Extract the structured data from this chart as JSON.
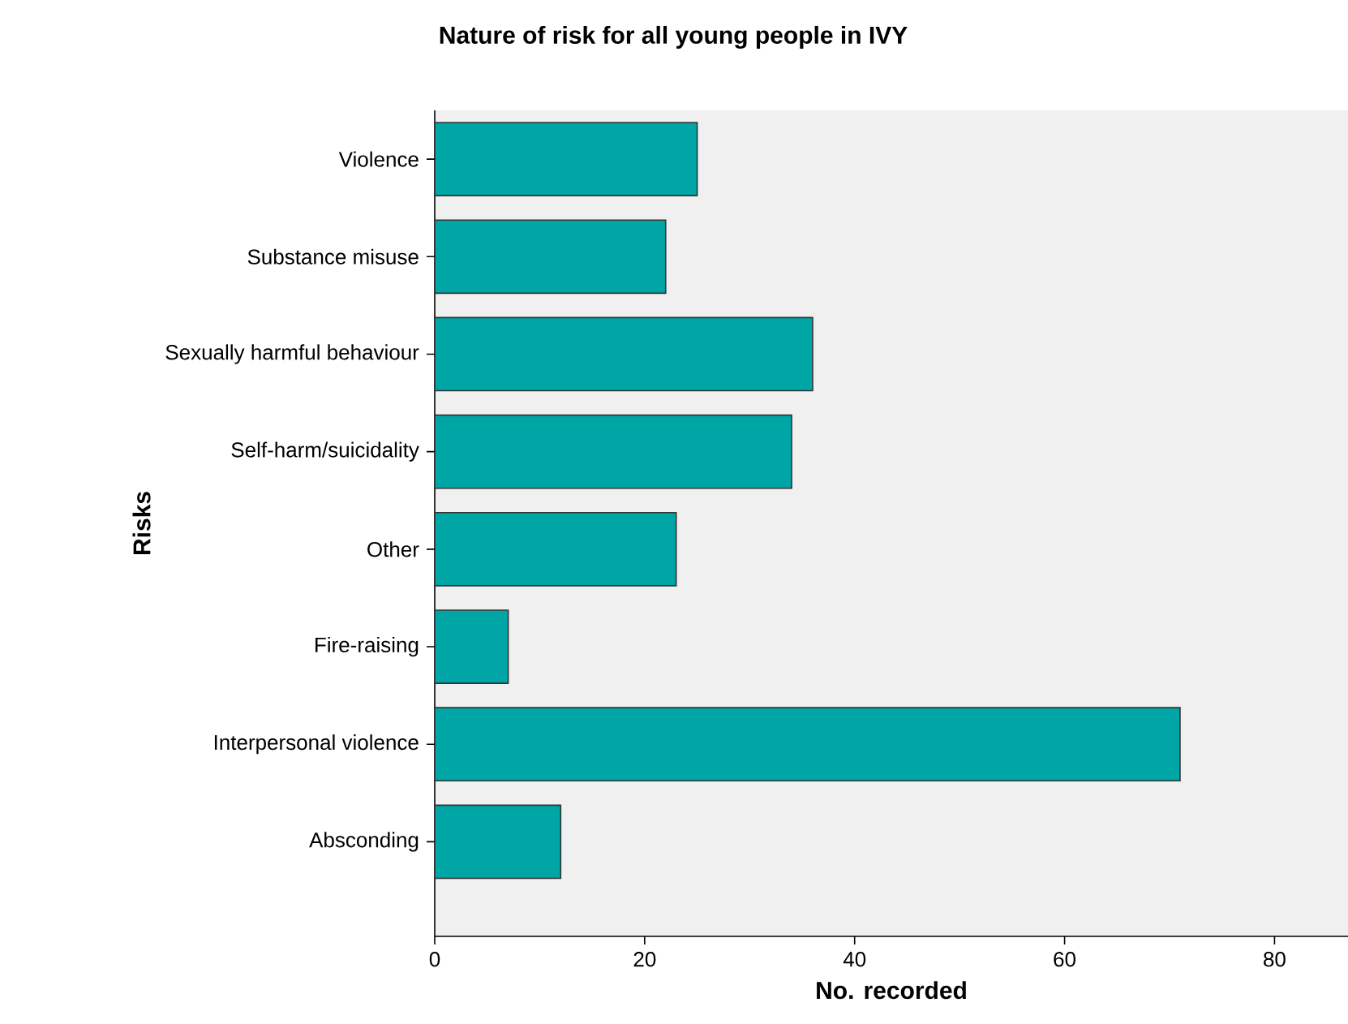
{
  "chart_data": {
    "type": "bar",
    "orientation": "horizontal",
    "title": "Nature of risk for all young people in IVY",
    "xlabel": "No. recorded",
    "ylabel": "Risks",
    "categories": [
      "Violence",
      "Substance misuse",
      "Sexually harmful behaviour",
      "Self-harm/suicidality",
      "Other",
      "Fire-raising",
      "Interpersonal violence",
      "Absconding"
    ],
    "values": [
      25,
      22,
      36,
      34,
      23,
      7,
      71,
      12
    ],
    "color": "#00a6a6",
    "xlim": [
      0,
      87
    ],
    "xticks": [
      0,
      20,
      40,
      60,
      80
    ],
    "grid": false
  }
}
